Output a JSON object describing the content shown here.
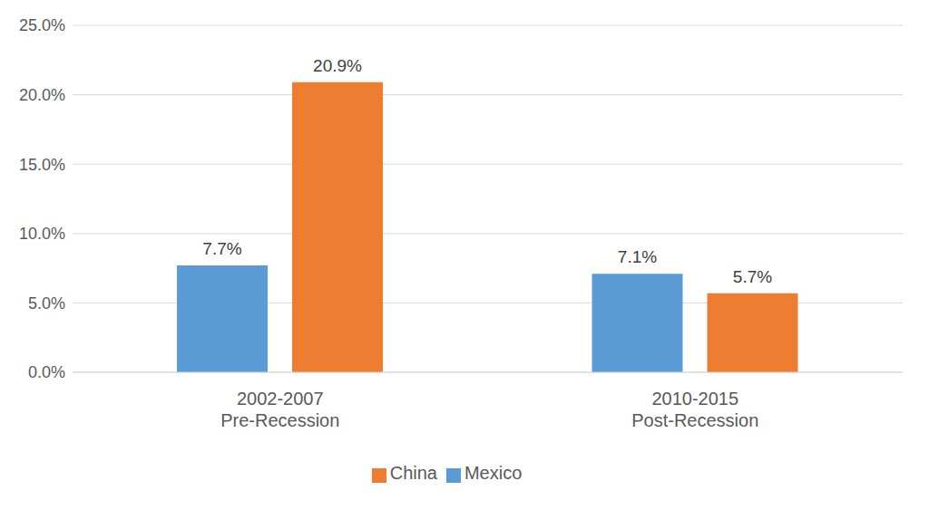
{
  "chart_data": {
    "type": "bar",
    "categories": [
      "2002-2007\nPre-Recession",
      "2010-2015\nPost-Recession"
    ],
    "series": [
      {
        "name": "Mexico",
        "color": "#5b9bd5",
        "values": [
          7.7,
          7.1
        ],
        "value_labels": [
          "7.7%",
          "7.1%"
        ]
      },
      {
        "name": "China",
        "color": "#ed7d31",
        "values": [
          20.9,
          5.7
        ],
        "value_labels": [
          "20.9%",
          "5.7%"
        ]
      }
    ],
    "ylim": [
      0,
      25
    ],
    "yticks": [
      {
        "value": 0,
        "label": "0.0%"
      },
      {
        "value": 5,
        "label": "5.0%"
      },
      {
        "value": 10,
        "label": "10.0%"
      },
      {
        "value": 15,
        "label": "15.0%"
      },
      {
        "value": 20,
        "label": "20.0%"
      },
      {
        "value": 25,
        "label": "25.0%"
      }
    ],
    "grid": true,
    "legend": "bottom",
    "data_labels": true
  }
}
